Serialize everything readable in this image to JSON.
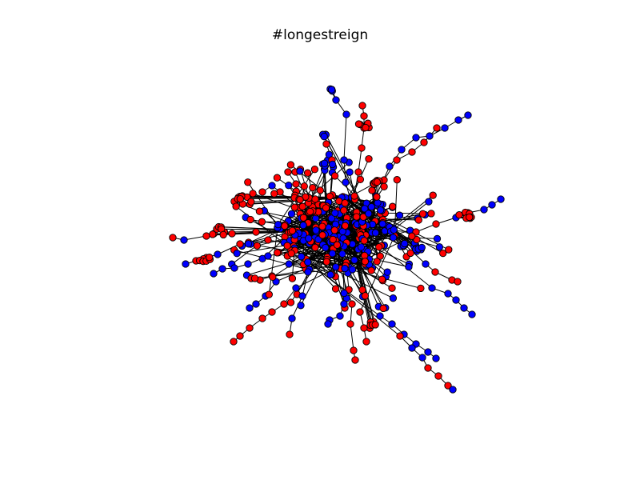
{
  "figure": {
    "title": "#longestreign"
  },
  "graph": {
    "node_colors": {
      "red": "#ff0000",
      "blue": "#0000ff",
      "edge": "#000000",
      "outline": "#000000"
    }
  }
}
